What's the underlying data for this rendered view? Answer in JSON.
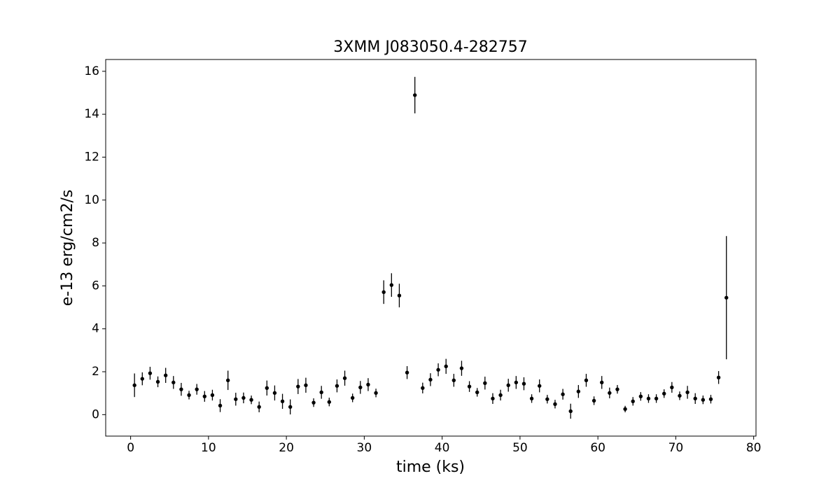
{
  "chart_data": {
    "type": "errorbar",
    "title": "3XMM J083050.4-282757",
    "xlabel": "time (ks)",
    "ylabel": "e-13 erg/cm2/s",
    "color": "#000000",
    "x": [
      0.5,
      1.5,
      2.5,
      3.5,
      4.5,
      5.5,
      6.5,
      7.5,
      8.5,
      9.5,
      10.5,
      11.5,
      12.5,
      13.5,
      14.5,
      15.5,
      16.5,
      17.5,
      18.5,
      19.5,
      20.5,
      21.5,
      22.5,
      23.5,
      24.5,
      25.5,
      26.5,
      27.5,
      28.5,
      29.5,
      30.5,
      31.5,
      32.5,
      33.5,
      34.5,
      35.5,
      36.5,
      37.5,
      38.5,
      39.5,
      40.5,
      41.5,
      42.5,
      43.5,
      44.5,
      45.5,
      46.5,
      47.5,
      48.5,
      49.5,
      50.5,
      51.5,
      52.5,
      53.5,
      54.5,
      55.5,
      56.5,
      57.5,
      58.5,
      59.5,
      60.5,
      61.5,
      62.5,
      63.5,
      64.5,
      65.5,
      66.5,
      67.5,
      68.5,
      69.5,
      70.5,
      71.5,
      72.5,
      73.5,
      74.5,
      75.5,
      76.5
    ],
    "values": [
      1.37,
      1.67,
      1.93,
      1.53,
      1.83,
      1.5,
      1.18,
      0.91,
      1.18,
      0.85,
      0.91,
      0.42,
      1.6,
      0.72,
      0.78,
      0.69,
      0.36,
      1.24,
      1.01,
      0.62,
      0.36,
      1.31,
      1.37,
      0.56,
      1.04,
      0.59,
      1.34,
      1.7,
      0.78,
      1.27,
      1.4,
      1.01,
      5.71,
      6.04,
      5.55,
      1.96,
      14.89,
      1.24,
      1.63,
      2.09,
      2.25,
      1.6,
      2.16,
      1.31,
      1.04,
      1.47,
      0.75,
      0.91,
      1.37,
      1.5,
      1.44,
      0.75,
      1.34,
      0.72,
      0.49,
      0.95,
      0.16,
      1.08,
      1.6,
      0.65,
      1.5,
      1.01,
      1.18,
      0.26,
      0.62,
      0.85,
      0.75,
      0.75,
      0.98,
      1.27,
      0.88,
      1.04,
      0.75,
      0.69,
      0.72,
      1.73,
      5.45
    ],
    "errors": [
      0.55,
      0.3,
      0.3,
      0.25,
      0.35,
      0.3,
      0.3,
      0.2,
      0.25,
      0.25,
      0.25,
      0.3,
      0.45,
      0.3,
      0.25,
      0.2,
      0.25,
      0.35,
      0.35,
      0.35,
      0.35,
      0.35,
      0.35,
      0.2,
      0.3,
      0.2,
      0.3,
      0.35,
      0.2,
      0.3,
      0.3,
      0.2,
      0.55,
      0.55,
      0.55,
      0.3,
      0.85,
      0.25,
      0.3,
      0.3,
      0.35,
      0.3,
      0.35,
      0.25,
      0.2,
      0.3,
      0.25,
      0.25,
      0.3,
      0.3,
      0.3,
      0.2,
      0.3,
      0.2,
      0.2,
      0.25,
      0.35,
      0.3,
      0.3,
      0.2,
      0.3,
      0.25,
      0.2,
      0.15,
      0.2,
      0.2,
      0.2,
      0.2,
      0.2,
      0.25,
      0.2,
      0.3,
      0.25,
      0.2,
      0.2,
      0.3,
      2.87
    ],
    "xlim": [
      -3.2,
      80.3
    ],
    "ylim": [
      -1.0,
      16.55
    ],
    "xticks": [
      0,
      10,
      20,
      30,
      40,
      50,
      60,
      70,
      80
    ],
    "yticks": [
      0,
      2,
      4,
      6,
      8,
      10,
      12,
      14,
      16
    ]
  }
}
